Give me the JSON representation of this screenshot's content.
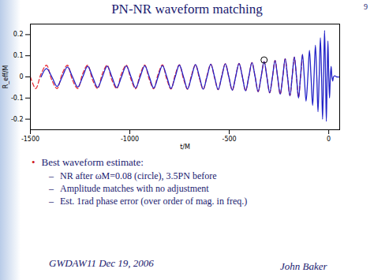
{
  "slide": {
    "title": "PN-NR waveform matching",
    "page_number": "9",
    "bullets": [
      {
        "text": "Best waveform estimate:",
        "items": [
          "NR after ωM=0.08 (circle), 3.5PN before",
          "Amplitude matches with no adjustment",
          "Est. 1rad phase error (over order of mag. in freq.)"
        ]
      }
    ],
    "footer_left": "GWDAW11  Dec 19, 2006",
    "footer_right": "John Baker"
  },
  "chart_data": {
    "type": "line",
    "x_label": "t/M",
    "y_label": "R_eff/M",
    "xlim": [
      -1500,
      55
    ],
    "xticks": [
      -1500,
      -1000,
      -500,
      0
    ],
    "ylim": [
      -0.25,
      0.25
    ],
    "yticks": [
      -0.2,
      -0.1,
      0,
      0.1,
      0.2
    ],
    "grid": false,
    "x": [
      -1500,
      -1473,
      -1446,
      -1419,
      -1392,
      -1366,
      -1340,
      -1314,
      -1288,
      -1262,
      -1237,
      -1212,
      -1187,
      -1162,
      -1138,
      -1114,
      -1090,
      -1066,
      -1042,
      -1018,
      -994,
      -971,
      -948,
      -925,
      -902,
      -880,
      -858,
      -836,
      -814,
      -793,
      -772,
      -751,
      -730,
      -710,
      -690,
      -670,
      -650,
      -631,
      -612,
      -593,
      -574,
      -556,
      -538,
      -520,
      -502,
      -485,
      -468,
      -451,
      -434,
      -418,
      -402,
      -386,
      -370,
      -355,
      -340,
      -325,
      -311,
      -297,
      -283,
      -270,
      -257,
      -244,
      -231,
      -219,
      -207,
      -195,
      -184,
      -173,
      -162,
      -152,
      -142,
      -132,
      -123,
      -114,
      -105,
      -97,
      -89,
      -81,
      -74,
      -67,
      -60,
      -54,
      -48,
      -42,
      -36,
      -31,
      -26,
      -21,
      -16,
      -12,
      -8,
      -4,
      0,
      4,
      8,
      12,
      16,
      20,
      24,
      30,
      40,
      55
    ],
    "series": [
      {
        "color": "#e8323c",
        "line_style": "dashed",
        "values": [
          0,
          -0.055,
          0.015,
          0.055,
          -0.015,
          -0.055,
          0.015,
          0.055,
          -0.015,
          -0.055,
          0.015,
          0.055,
          -0.015,
          -0.055,
          0.015,
          0.055,
          -0.015,
          -0.055,
          0.015,
          0.056,
          -0.012,
          -0.056,
          0.012,
          0.056,
          -0.012,
          -0.056,
          0.012,
          0.057,
          -0.012,
          -0.057,
          0.01,
          0.057,
          -0.01,
          -0.058,
          0.008,
          0.058,
          -0.008,
          -0.059,
          0.006,
          0.06,
          -0.005,
          -0.06,
          0.004,
          0.062,
          -0.003,
          -0.063,
          0.002,
          0.064,
          0,
          -0.066,
          0,
          0.068,
          0,
          -0.07,
          0,
          0.072,
          0,
          -0.075,
          0,
          0.078,
          0,
          -0.082,
          0,
          0.085,
          0,
          -0.088,
          0,
          0.093,
          -0.002,
          -0.097,
          -0.003,
          0.103,
          null,
          null,
          null,
          null,
          null,
          null,
          null,
          null,
          null,
          null,
          null,
          null,
          null,
          null,
          null,
          null,
          null,
          null,
          null,
          null,
          null,
          null,
          null,
          null,
          null,
          null,
          null,
          null,
          null,
          null
        ]
      },
      {
        "color": "#2323c8",
        "line_style": "solid",
        "values": [
          null,
          null,
          0,
          0.04,
          0,
          -0.045,
          0,
          0.047,
          0,
          -0.048,
          0,
          0.05,
          0,
          -0.05,
          0,
          0.051,
          0,
          -0.051,
          0,
          0.052,
          0,
          -0.052,
          0,
          0.053,
          0,
          -0.053,
          0,
          0.054,
          0,
          -0.055,
          0,
          0.056,
          0,
          -0.057,
          0,
          0.058,
          0,
          -0.058,
          0,
          0.06,
          0,
          -0.06,
          0,
          0.062,
          0,
          -0.063,
          0,
          0.064,
          0,
          -0.066,
          0,
          0.068,
          0,
          -0.07,
          0,
          0.072,
          0,
          -0.075,
          0,
          0.078,
          0,
          -0.082,
          0,
          0.086,
          0,
          -0.09,
          0,
          0.095,
          0,
          -0.1,
          0,
          0.107,
          0,
          -0.115,
          0,
          0.125,
          0,
          -0.135,
          0,
          0.15,
          0,
          -0.165,
          0,
          0.185,
          0,
          -0.2,
          0,
          0.22,
          0,
          -0.21,
          0,
          0.17,
          0,
          -0.1,
          0,
          0.05,
          0,
          -0.02,
          0,
          0.005,
          0,
          0
        ]
      }
    ],
    "annotations": [
      {
        "x": -325,
        "y": 0.08,
        "marker": "circle"
      }
    ]
  }
}
